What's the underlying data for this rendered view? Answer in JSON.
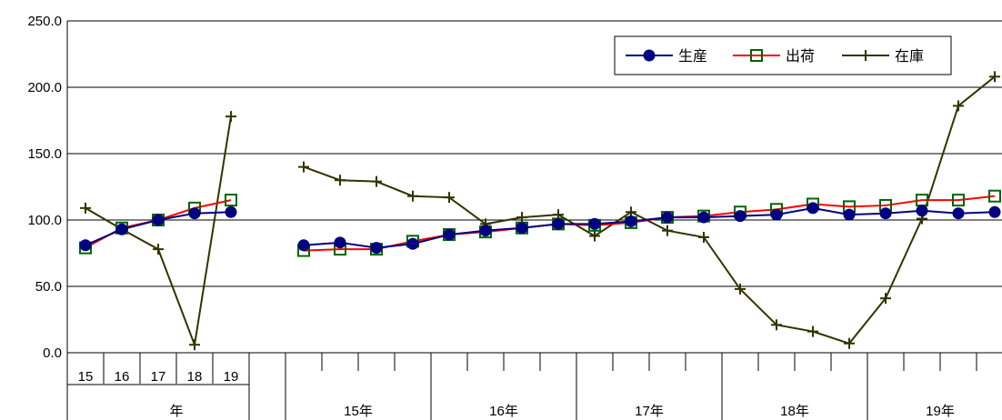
{
  "chart_data": {
    "type": "line",
    "ylim": [
      0,
      250
    ],
    "y_ticks": [
      "250.0",
      "200.0",
      "150.0",
      "100.0",
      "50.0",
      "0.0"
    ],
    "grid": "horizontal",
    "legend_position": "top-right",
    "annual_x_labels": [
      "15",
      "16",
      "17",
      "18",
      "19"
    ],
    "annual_group_label": "年",
    "quarter_group_labels": [
      "15年",
      "16年",
      "17年",
      "18年",
      "19年"
    ],
    "colors": {
      "production": "#000080",
      "shipment_line": "#ff0000",
      "shipment_marker": "#006600",
      "inventory": "#333300"
    },
    "series": [
      {
        "name": "生産",
        "marker": "circle",
        "annual": [
          81,
          93,
          100,
          105,
          106
        ],
        "quarterly": [
          81,
          83,
          79,
          82,
          89,
          92,
          94,
          97,
          97,
          99,
          102,
          102,
          103,
          104,
          109,
          104,
          105,
          107,
          105,
          106
        ]
      },
      {
        "name": "出荷",
        "marker": "square",
        "annual": [
          79,
          94,
          100,
          109,
          115
        ],
        "quarterly": [
          77,
          78,
          78,
          84,
          89,
          91,
          94,
          97,
          96,
          98,
          102,
          103,
          106,
          108,
          112,
          110,
          111,
          115,
          115,
          118
        ]
      },
      {
        "name": "在庫",
        "marker": "cross",
        "annual": [
          109,
          93,
          78,
          6,
          178
        ],
        "quarterly": [
          140,
          130,
          129,
          118,
          117,
          97,
          102,
          104,
          88,
          106,
          92,
          87,
          48,
          21,
          16,
          7,
          41,
          101,
          186,
          208
        ]
      }
    ]
  }
}
